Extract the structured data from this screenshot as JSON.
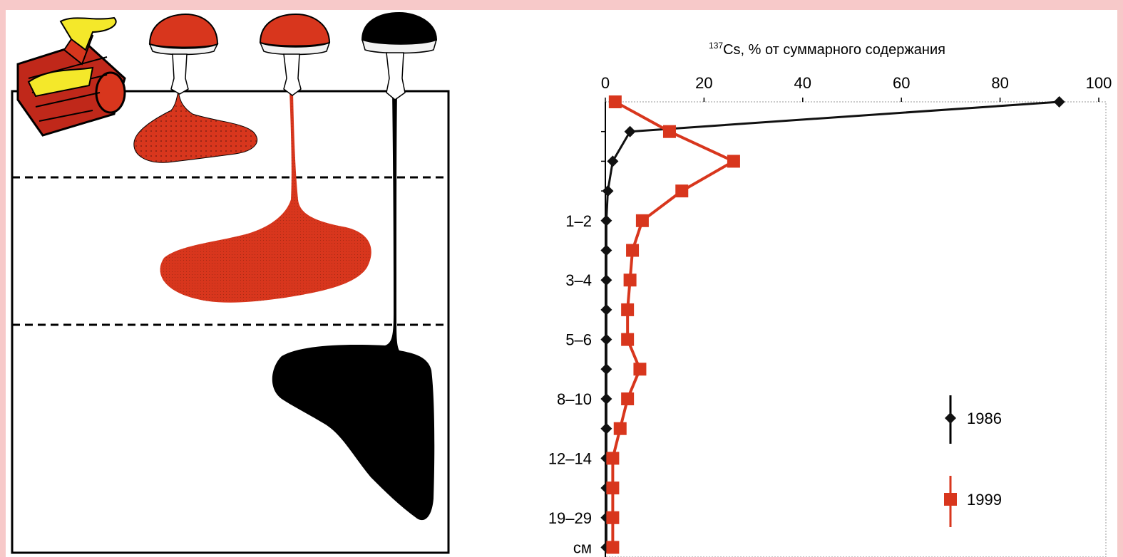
{
  "chart_data": {
    "type": "line",
    "title_sup": "137",
    "title_main": "Cs, % от суммарного содержания",
    "x_axis": {
      "range": [
        0,
        100
      ],
      "ticks": [
        0,
        20,
        40,
        60,
        80,
        100
      ]
    },
    "y_axis": {
      "rows": 16,
      "labels": [
        {
          "row": 4,
          "text": "1–2"
        },
        {
          "row": 6,
          "text": "3–4"
        },
        {
          "row": 8,
          "text": "5–6"
        },
        {
          "row": 10,
          "text": "8–10"
        },
        {
          "row": 12,
          "text": "12–14"
        },
        {
          "row": 14,
          "text": "19–29"
        },
        {
          "row": 15,
          "text": "см"
        }
      ]
    },
    "series": [
      {
        "name": "1986",
        "color": "#111111",
        "marker": "diamond",
        "values": [
          92,
          5,
          1.5,
          0.5,
          0.2,
          0.2,
          0.2,
          0.2,
          0.2,
          0.2,
          0.2,
          0.2,
          0.2,
          0.2,
          0.2,
          0.2
        ]
      },
      {
        "name": "1999",
        "color": "#d8361d",
        "marker": "square",
        "values": [
          2,
          13,
          26,
          15.5,
          7.5,
          5.5,
          5,
          4.5,
          4.5,
          7,
          4.5,
          3,
          1.5,
          1.5,
          1.5,
          1.5
        ]
      }
    ],
    "legend": {
      "placement": "bottom-right"
    }
  },
  "illustration": {
    "colors": {
      "red": "#d8361d",
      "black": "#000000",
      "yellow": "#f4e82a"
    },
    "icons": [
      "log-with-fungus-icon",
      "mushroom-red-cap-icon",
      "mushroom-red-cap-icon",
      "mushroom-black-cap-icon"
    ]
  }
}
